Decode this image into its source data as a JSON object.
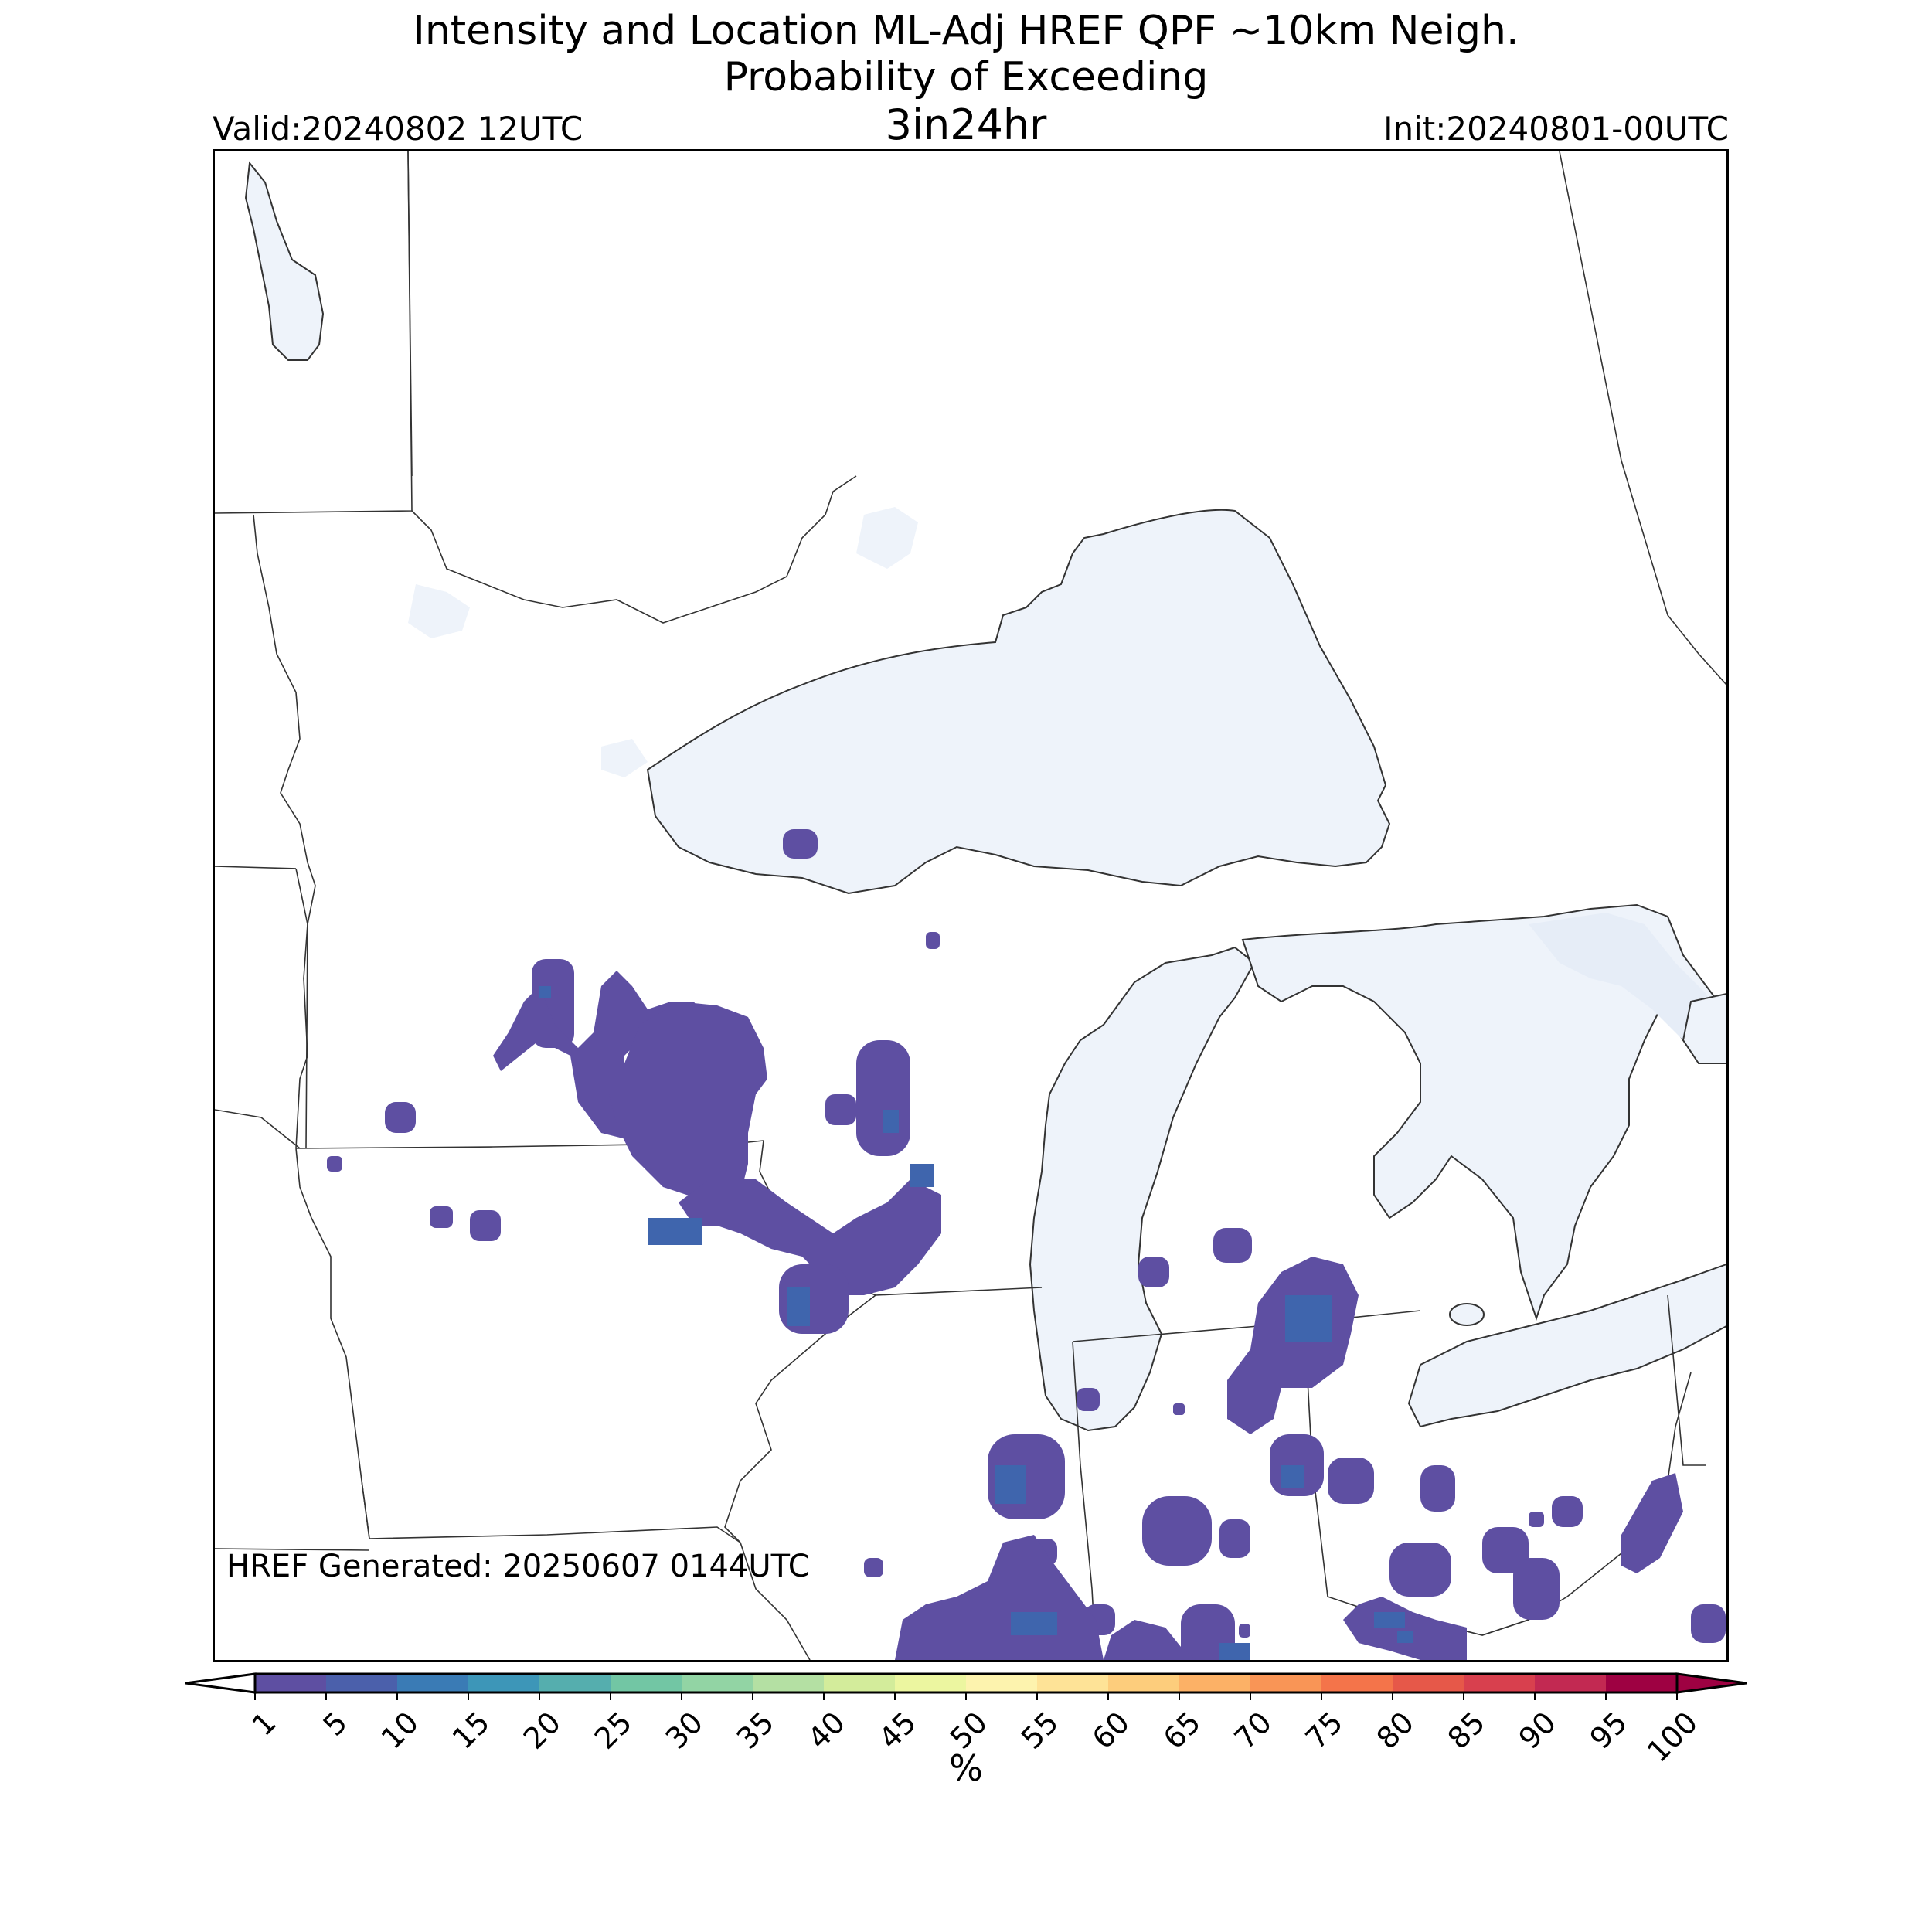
{
  "header": {
    "title_line1": "Intensity and Location ML-Adj HREF QPF ~10km Neigh.",
    "title_line2": "Probability of Exceeding",
    "threshold": "3in24hr",
    "valid": "Valid:20240802 12UTC",
    "init": "Init:20240801-00UTC"
  },
  "map": {
    "region": "Upper Midwest / Great Lakes",
    "generated": "HREF Generated: 20250607 0144UTC",
    "land_color": "#ffffff",
    "water_color": "#eef3fa",
    "probability_fill_color": "#5e4fa2",
    "probability_core_color": "#3f65ad"
  },
  "colorbar": {
    "unit": "%",
    "ticks": [
      "1",
      "5",
      "10",
      "15",
      "20",
      "25",
      "30",
      "35",
      "40",
      "45",
      "50",
      "55",
      "60",
      "65",
      "70",
      "75",
      "80",
      "85",
      "90",
      "95",
      "100"
    ],
    "colors": [
      "#5e4fa2",
      "#4b60ab",
      "#3a7bb5",
      "#3d96b8",
      "#55aeae",
      "#72c6a4",
      "#92d4a4",
      "#b4e0a3",
      "#d3ec9b",
      "#ecf6a0",
      "#fdf3ae",
      "#fee397",
      "#fdcd7c",
      "#fcb166",
      "#f99556",
      "#f4744a",
      "#e65849",
      "#d8404e",
      "#c22952",
      "#9e0142"
    ]
  }
}
